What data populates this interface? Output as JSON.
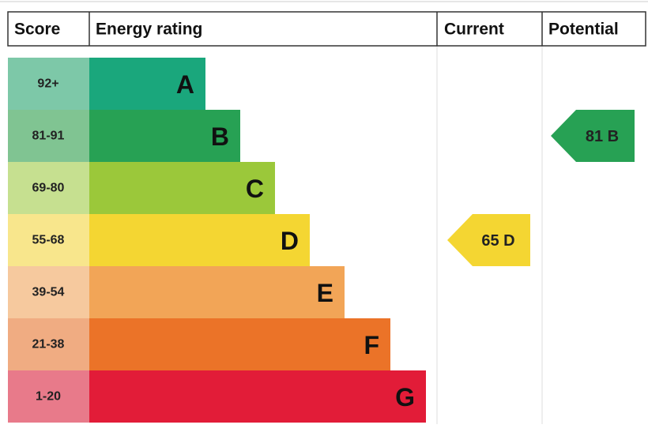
{
  "header": {
    "score": "Score",
    "energy_rating": "Energy rating",
    "current": "Current",
    "potential": "Potential"
  },
  "bands": [
    {
      "range": "92+",
      "letter": "A",
      "color": "#1aa77c",
      "light": "#7dc8a8"
    },
    {
      "range": "81-91",
      "letter": "B",
      "color": "#27a154",
      "light": "#80c492"
    },
    {
      "range": "69-80",
      "letter": "C",
      "color": "#9bc83a",
      "light": "#c6e090"
    },
    {
      "range": "55-68",
      "letter": "D",
      "color": "#f4d632",
      "light": "#f8e68c"
    },
    {
      "range": "39-54",
      "letter": "E",
      "color": "#f2a557",
      "light": "#f6c99e"
    },
    {
      "range": "21-38",
      "letter": "F",
      "color": "#eb7328",
      "light": "#f0ac82"
    },
    {
      "range": "1-20",
      "letter": "G",
      "color": "#e21c38",
      "light": "#e87a8a"
    }
  ],
  "current": {
    "score": 65,
    "letter": "D"
  },
  "potential": {
    "score": 81,
    "letter": "B"
  }
}
